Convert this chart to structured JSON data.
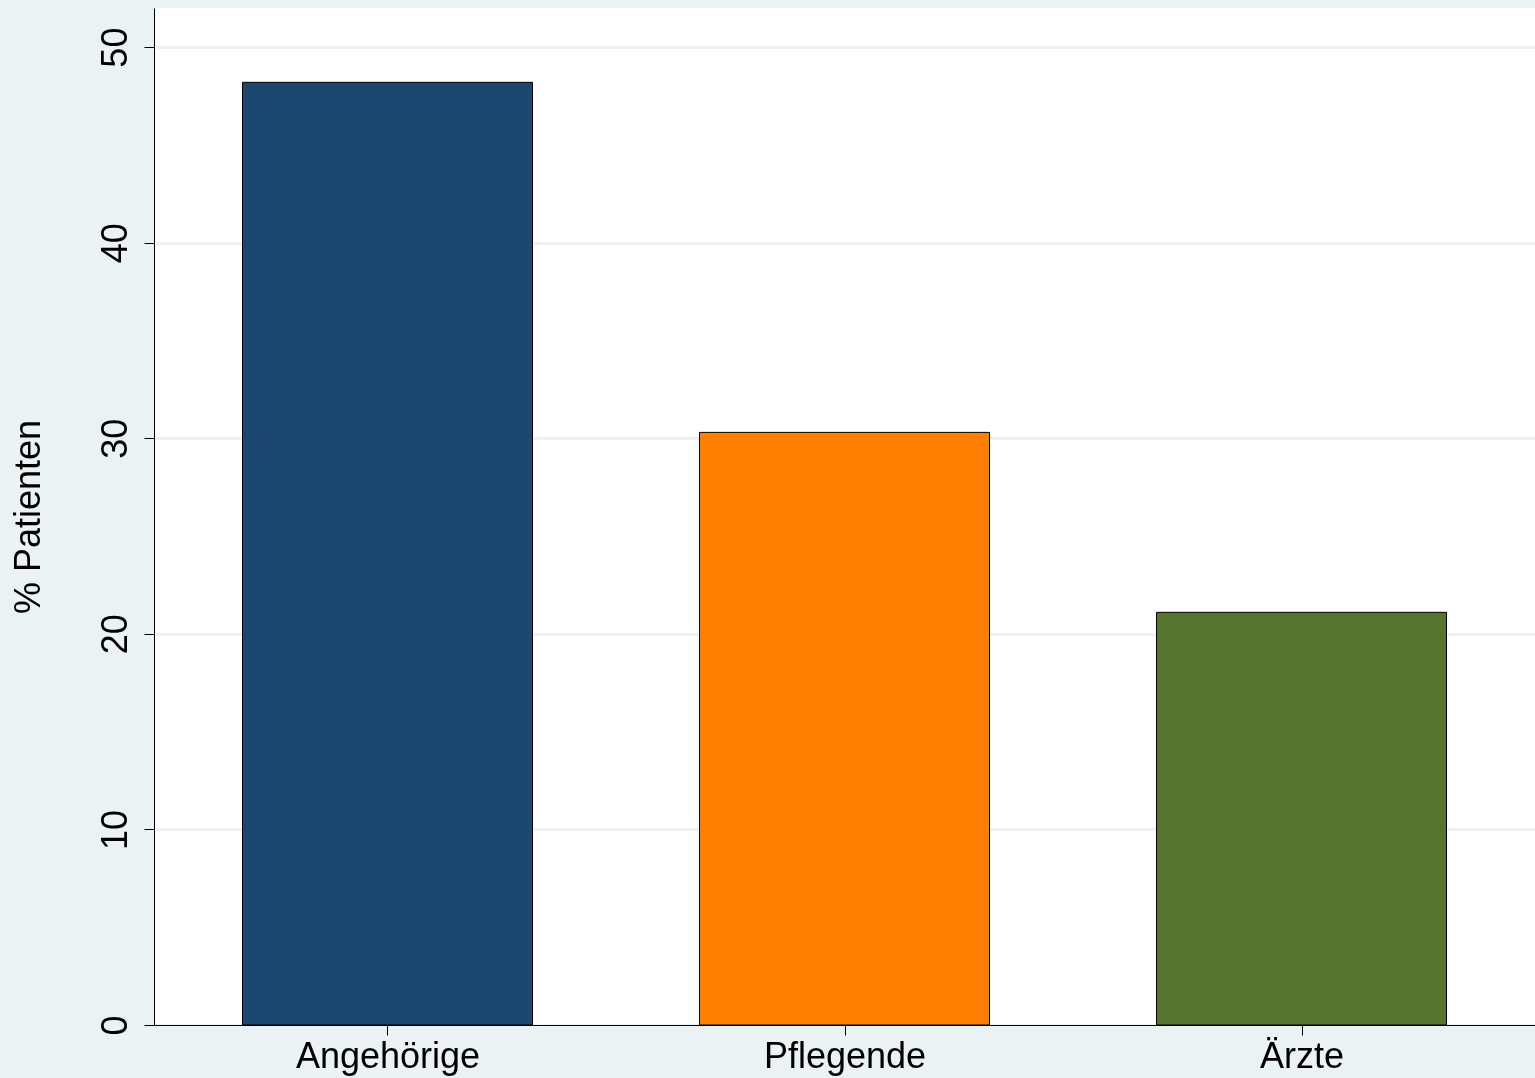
{
  "chart_data": {
    "type": "bar",
    "ylabel": "% Patienten",
    "categories": [
      "Angehörige",
      "Pflegende",
      "Ärzte"
    ],
    "values": [
      48.2,
      30.3,
      21.1
    ],
    "colors": [
      "#1c476f",
      "#ff7f00",
      "#55752f"
    ],
    "ylim": [
      0,
      52
    ],
    "yticks": [
      0,
      10,
      20,
      30,
      40,
      50
    ],
    "grid": "y",
    "legend": false
  }
}
